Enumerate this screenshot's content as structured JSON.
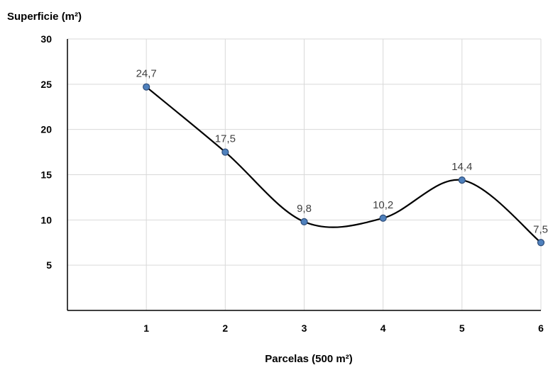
{
  "chart_data": {
    "type": "line",
    "ylabel": "Superficie (m²)",
    "xlabel": "Parcelas (500 m²)",
    "x": [
      1,
      2,
      3,
      4,
      5,
      6
    ],
    "x_tick_labels": [
      "1",
      "2",
      "3",
      "4",
      "5",
      "6"
    ],
    "y_ticks": [
      5,
      10,
      15,
      20,
      25,
      30
    ],
    "y_tick_labels": [
      "5",
      "10",
      "15",
      "20",
      "25",
      "30"
    ],
    "values": [
      24.7,
      17.5,
      9.8,
      10.2,
      14.4,
      7.5
    ],
    "data_labels": [
      "24,7",
      "17,5",
      "9,8",
      "10,2",
      "14,4",
      "7,5"
    ],
    "xlim": [
      0,
      6
    ],
    "ylim": [
      0,
      30
    ],
    "grid": true,
    "smooth": true,
    "line_color": "#000000",
    "marker_color": "#4f81bd",
    "marker_edge_color": "#2e4d7a"
  }
}
